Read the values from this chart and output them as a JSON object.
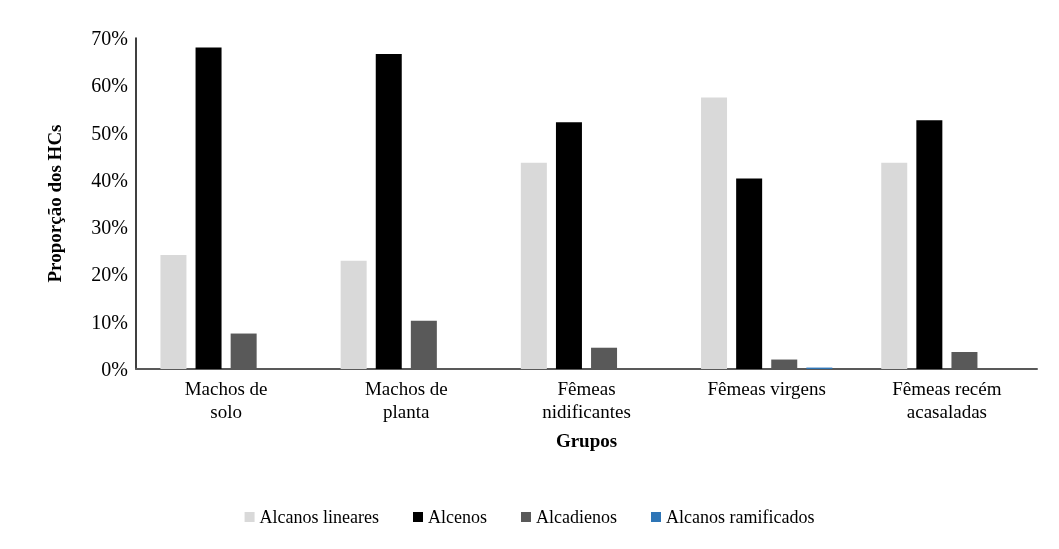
{
  "chart_data": {
    "type": "bar",
    "xlabel": "Grupos",
    "ylabel": "Proporção dos HCs",
    "categories": [
      "Machos de solo",
      "Machos de planta",
      "Fêmeas nidificantes",
      "Fêmeas virgens",
      "Fêmeas recém acasaladas"
    ],
    "series": [
      {
        "name": "Alcanos lineares",
        "color": "#d9d9d9",
        "values": [
          24.1,
          22.9,
          43.6,
          57.4,
          43.6
        ]
      },
      {
        "name": "Alcenos",
        "color": "#000000",
        "values": [
          68.0,
          66.6,
          52.2,
          40.3,
          52.6
        ]
      },
      {
        "name": "Alcadienos",
        "color": "#595959",
        "values": [
          7.5,
          10.2,
          4.5,
          2.0,
          3.6
        ]
      },
      {
        "name": "Alcanos ramificados",
        "color": "#2e75b6",
        "values": [
          0,
          0,
          0,
          0.3,
          0
        ]
      }
    ],
    "ylim": [
      0,
      70
    ],
    "yticks": [
      {
        "value": 0,
        "label": "0%"
      },
      {
        "value": 10,
        "label": "10%"
      },
      {
        "value": 20,
        "label": "20%"
      },
      {
        "value": 30,
        "label": "30%"
      },
      {
        "value": 40,
        "label": "40%"
      },
      {
        "value": 50,
        "label": "50%"
      },
      {
        "value": 60,
        "label": "60%"
      },
      {
        "value": 70,
        "label": "70%"
      }
    ],
    "grid": false,
    "legend": "bottom"
  }
}
